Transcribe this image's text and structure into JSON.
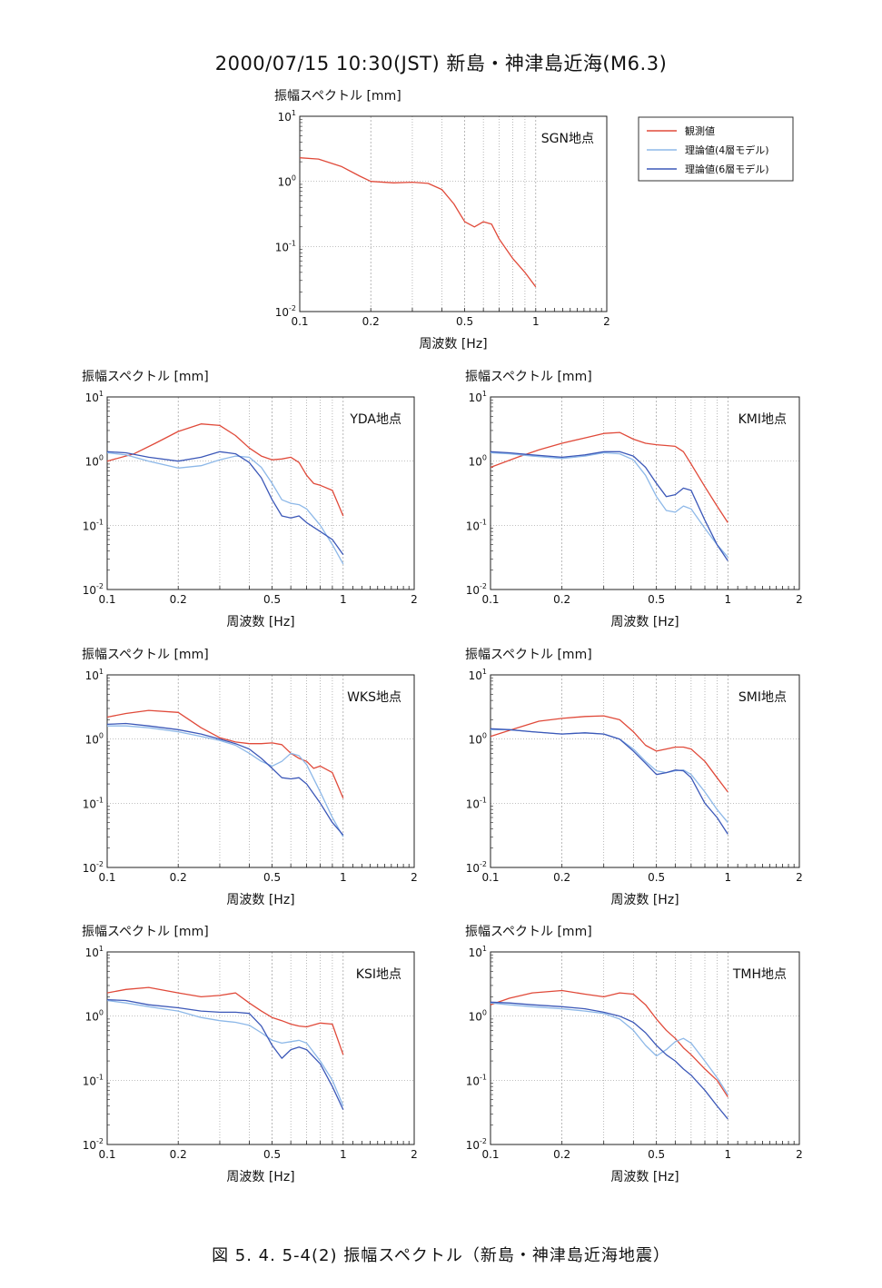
{
  "figure": {
    "title": "2000/07/15  10:30(JST)  新島・神津島近海(M6.3)",
    "caption": "図 5. 4. 5-4(2)        振幅スペクトル（新島・神津島近海地震）",
    "colors": {
      "observed": "#e04a3a",
      "model4": "#8db8e8",
      "model6": "#3c58b8"
    }
  },
  "legend": {
    "entries": [
      {
        "label": "観測値",
        "color": "#e04a3a"
      },
      {
        "label": "理論値(4層モデル)",
        "color": "#8db8e8"
      },
      {
        "label": "理論値(6層モデル)",
        "color": "#3c58b8"
      }
    ]
  },
  "chart_data": [
    {
      "type": "line",
      "station": "SGN地点",
      "ylabel": "振幅スペクトル [mm]",
      "xlabel": "周波数 [Hz]",
      "xscale": "log",
      "yscale": "log",
      "xlim": [
        0.1,
        2
      ],
      "ylim": [
        0.01,
        10
      ],
      "xticks": [
        "0.1",
        "0.2",
        "0.5",
        "1",
        "2"
      ],
      "yticks": [
        "10^-2",
        "10^-1",
        "10^0",
        "10^1"
      ],
      "series": [
        {
          "name": "観測値",
          "x": [
            0.1,
            0.12,
            0.15,
            0.18,
            0.2,
            0.25,
            0.3,
            0.35,
            0.4,
            0.45,
            0.5,
            0.55,
            0.6,
            0.65,
            0.7,
            0.8,
            0.9,
            1.0
          ],
          "y": [
            2.3,
            2.2,
            1.7,
            1.2,
            1.0,
            0.95,
            0.97,
            0.93,
            0.75,
            0.45,
            0.24,
            0.2,
            0.24,
            0.22,
            0.13,
            0.065,
            0.04,
            0.024
          ]
        }
      ]
    },
    {
      "type": "line",
      "station": "YDA地点",
      "ylabel": "振幅スペクトル [mm]",
      "xlabel": "周波数 [Hz]",
      "xscale": "log",
      "yscale": "log",
      "xlim": [
        0.1,
        2
      ],
      "ylim": [
        0.01,
        10
      ],
      "xticks": [
        "0.1",
        "0.2",
        "0.5",
        "1",
        "2"
      ],
      "yticks": [
        "10^-2",
        "10^-1",
        "10^0",
        "10^1"
      ],
      "series": [
        {
          "name": "観測値",
          "x": [
            0.1,
            0.13,
            0.16,
            0.2,
            0.25,
            0.3,
            0.35,
            0.4,
            0.45,
            0.5,
            0.55,
            0.6,
            0.65,
            0.7,
            0.75,
            0.8,
            0.9,
            1.0
          ],
          "y": [
            1.0,
            1.3,
            1.9,
            2.9,
            3.8,
            3.6,
            2.5,
            1.6,
            1.2,
            1.05,
            1.08,
            1.15,
            0.95,
            0.6,
            0.45,
            0.42,
            0.35,
            0.14
          ]
        },
        {
          "name": "理論値(4層モデル)",
          "x": [
            0.1,
            0.12,
            0.15,
            0.2,
            0.25,
            0.3,
            0.35,
            0.4,
            0.45,
            0.5,
            0.55,
            0.6,
            0.65,
            0.7,
            0.8,
            0.9,
            1.0
          ],
          "y": [
            1.35,
            1.25,
            1.0,
            0.78,
            0.85,
            1.05,
            1.2,
            1.15,
            0.8,
            0.45,
            0.25,
            0.22,
            0.21,
            0.18,
            0.1,
            0.05,
            0.025
          ]
        },
        {
          "name": "理論値(6層モデル)",
          "x": [
            0.1,
            0.12,
            0.15,
            0.2,
            0.25,
            0.3,
            0.35,
            0.4,
            0.45,
            0.5,
            0.55,
            0.6,
            0.65,
            0.7,
            0.8,
            0.9,
            1.0
          ],
          "y": [
            1.4,
            1.35,
            1.15,
            1.0,
            1.15,
            1.4,
            1.3,
            0.95,
            0.55,
            0.25,
            0.14,
            0.13,
            0.14,
            0.11,
            0.08,
            0.06,
            0.035
          ]
        }
      ]
    },
    {
      "type": "line",
      "station": "KMI地点",
      "ylabel": "振幅スペクトル [mm]",
      "xlabel": "周波数 [Hz]",
      "xscale": "log",
      "yscale": "log",
      "xlim": [
        0.1,
        2
      ],
      "ylim": [
        0.01,
        10
      ],
      "xticks": [
        "0.1",
        "0.2",
        "0.5",
        "1",
        "2"
      ],
      "yticks": [
        "10^-2",
        "10^-1",
        "10^0",
        "10^1"
      ],
      "series": [
        {
          "name": "観測値",
          "x": [
            0.1,
            0.13,
            0.16,
            0.2,
            0.25,
            0.3,
            0.35,
            0.4,
            0.45,
            0.5,
            0.55,
            0.6,
            0.65,
            0.7,
            0.8,
            0.9,
            1.0
          ],
          "y": [
            0.8,
            1.15,
            1.5,
            1.9,
            2.3,
            2.7,
            2.8,
            2.2,
            1.9,
            1.8,
            1.75,
            1.7,
            1.4,
            0.9,
            0.4,
            0.2,
            0.11
          ]
        },
        {
          "name": "理論値(4層モデル)",
          "x": [
            0.1,
            0.12,
            0.15,
            0.2,
            0.25,
            0.3,
            0.35,
            0.4,
            0.45,
            0.5,
            0.55,
            0.6,
            0.65,
            0.7,
            0.8,
            0.9,
            1.0
          ],
          "y": [
            1.35,
            1.3,
            1.2,
            1.1,
            1.2,
            1.35,
            1.3,
            1.05,
            0.6,
            0.28,
            0.17,
            0.16,
            0.2,
            0.18,
            0.09,
            0.05,
            0.032
          ]
        },
        {
          "name": "理論値(6層モデル)",
          "x": [
            0.1,
            0.12,
            0.15,
            0.2,
            0.25,
            0.3,
            0.35,
            0.4,
            0.45,
            0.5,
            0.55,
            0.6,
            0.65,
            0.7,
            0.8,
            0.9,
            1.0
          ],
          "y": [
            1.4,
            1.35,
            1.25,
            1.15,
            1.25,
            1.4,
            1.4,
            1.2,
            0.8,
            0.45,
            0.28,
            0.3,
            0.38,
            0.35,
            0.12,
            0.05,
            0.028
          ]
        }
      ]
    },
    {
      "type": "line",
      "station": "WKS地点",
      "ylabel": "振幅スペクトル [mm]",
      "xlabel": "周波数 [Hz]",
      "xscale": "log",
      "yscale": "log",
      "xlim": [
        0.1,
        2
      ],
      "ylim": [
        0.01,
        10
      ],
      "xticks": [
        "0.1",
        "0.2",
        "0.5",
        "1",
        "2"
      ],
      "yticks": [
        "10^-2",
        "10^-1",
        "10^0",
        "10^1"
      ],
      "series": [
        {
          "name": "観測値",
          "x": [
            0.1,
            0.12,
            0.15,
            0.2,
            0.25,
            0.3,
            0.35,
            0.4,
            0.45,
            0.5,
            0.55,
            0.6,
            0.65,
            0.7,
            0.75,
            0.8,
            0.9,
            1.0
          ],
          "y": [
            2.2,
            2.5,
            2.8,
            2.6,
            1.5,
            1.05,
            0.9,
            0.85,
            0.85,
            0.87,
            0.82,
            0.6,
            0.5,
            0.45,
            0.35,
            0.38,
            0.3,
            0.12
          ]
        },
        {
          "name": "理論値(4層モデル)",
          "x": [
            0.1,
            0.12,
            0.15,
            0.2,
            0.25,
            0.3,
            0.35,
            0.4,
            0.45,
            0.5,
            0.55,
            0.6,
            0.65,
            0.7,
            0.8,
            0.9,
            1.0
          ],
          "y": [
            1.6,
            1.6,
            1.5,
            1.3,
            1.1,
            0.95,
            0.8,
            0.6,
            0.45,
            0.38,
            0.45,
            0.6,
            0.55,
            0.4,
            0.15,
            0.06,
            0.03
          ]
        },
        {
          "name": "理論値(6層モデル)",
          "x": [
            0.1,
            0.12,
            0.15,
            0.2,
            0.25,
            0.3,
            0.35,
            0.4,
            0.45,
            0.5,
            0.55,
            0.6,
            0.65,
            0.7,
            0.8,
            0.9,
            1.0
          ],
          "y": [
            1.7,
            1.75,
            1.6,
            1.4,
            1.2,
            1.0,
            0.85,
            0.7,
            0.5,
            0.35,
            0.25,
            0.24,
            0.25,
            0.2,
            0.1,
            0.05,
            0.032
          ]
        }
      ]
    },
    {
      "type": "line",
      "station": "SMI地点",
      "ylabel": "振幅スペクトル [mm]",
      "xlabel": "周波数 [Hz]",
      "xscale": "log",
      "yscale": "log",
      "xlim": [
        0.1,
        2
      ],
      "ylim": [
        0.01,
        10
      ],
      "xticks": [
        "0.1",
        "0.2",
        "0.5",
        "1",
        "2"
      ],
      "yticks": [
        "10^-2",
        "10^-1",
        "10^0",
        "10^1"
      ],
      "series": [
        {
          "name": "観測値",
          "x": [
            0.1,
            0.13,
            0.16,
            0.2,
            0.25,
            0.3,
            0.35,
            0.4,
            0.45,
            0.5,
            0.55,
            0.6,
            0.65,
            0.7,
            0.8,
            0.9,
            1.0
          ],
          "y": [
            1.1,
            1.5,
            1.9,
            2.1,
            2.25,
            2.3,
            2.0,
            1.3,
            0.8,
            0.65,
            0.7,
            0.75,
            0.75,
            0.7,
            0.45,
            0.25,
            0.15
          ]
        },
        {
          "name": "理論値(4層モデル)",
          "x": [
            0.1,
            0.12,
            0.15,
            0.2,
            0.25,
            0.3,
            0.35,
            0.4,
            0.45,
            0.5,
            0.55,
            0.6,
            0.65,
            0.7,
            0.8,
            0.9,
            1.0
          ],
          "y": [
            1.4,
            1.4,
            1.3,
            1.2,
            1.25,
            1.2,
            1.0,
            0.7,
            0.45,
            0.32,
            0.3,
            0.32,
            0.33,
            0.28,
            0.15,
            0.08,
            0.05
          ]
        },
        {
          "name": "理論値(6層モデル)",
          "x": [
            0.1,
            0.12,
            0.15,
            0.2,
            0.25,
            0.3,
            0.35,
            0.4,
            0.45,
            0.5,
            0.55,
            0.6,
            0.65,
            0.7,
            0.8,
            0.9,
            1.0
          ],
          "y": [
            1.45,
            1.4,
            1.3,
            1.2,
            1.25,
            1.2,
            1.0,
            0.65,
            0.42,
            0.28,
            0.3,
            0.33,
            0.32,
            0.25,
            0.1,
            0.06,
            0.033
          ]
        }
      ]
    },
    {
      "type": "line",
      "station": "KSI地点",
      "ylabel": "振幅スペクトル [mm]",
      "xlabel": "周波数 [Hz]",
      "xscale": "log",
      "yscale": "log",
      "xlim": [
        0.1,
        2
      ],
      "ylim": [
        0.01,
        10
      ],
      "xticks": [
        "0.1",
        "0.2",
        "0.5",
        "1",
        "2"
      ],
      "yticks": [
        "10^-2",
        "10^-1",
        "10^0",
        "10^1"
      ],
      "series": [
        {
          "name": "観測値",
          "x": [
            0.1,
            0.12,
            0.15,
            0.2,
            0.25,
            0.3,
            0.35,
            0.4,
            0.45,
            0.5,
            0.55,
            0.6,
            0.65,
            0.7,
            0.8,
            0.9,
            1.0
          ],
          "y": [
            2.3,
            2.6,
            2.8,
            2.3,
            2.0,
            2.1,
            2.3,
            1.6,
            1.2,
            0.95,
            0.85,
            0.75,
            0.7,
            0.68,
            0.78,
            0.75,
            0.25
          ]
        },
        {
          "name": "理論値(4層モデル)",
          "x": [
            0.1,
            0.12,
            0.15,
            0.2,
            0.25,
            0.3,
            0.35,
            0.4,
            0.45,
            0.5,
            0.55,
            0.6,
            0.65,
            0.7,
            0.8,
            0.9,
            1.0
          ],
          "y": [
            1.75,
            1.6,
            1.4,
            1.2,
            0.95,
            0.85,
            0.8,
            0.72,
            0.55,
            0.42,
            0.38,
            0.4,
            0.42,
            0.38,
            0.2,
            0.1,
            0.04
          ]
        },
        {
          "name": "理論値(6層モデル)",
          "x": [
            0.1,
            0.12,
            0.15,
            0.2,
            0.25,
            0.3,
            0.35,
            0.4,
            0.45,
            0.5,
            0.55,
            0.6,
            0.65,
            0.7,
            0.8,
            0.9,
            1.0
          ],
          "y": [
            1.8,
            1.75,
            1.5,
            1.35,
            1.2,
            1.15,
            1.15,
            1.1,
            0.7,
            0.35,
            0.22,
            0.3,
            0.33,
            0.3,
            0.18,
            0.08,
            0.035
          ]
        }
      ]
    },
    {
      "type": "line",
      "station": "TMH地点",
      "ylabel": "振幅スペクトル [mm]",
      "xlabel": "周波数 [Hz]",
      "xscale": "log",
      "yscale": "log",
      "xlim": [
        0.1,
        2
      ],
      "ylim": [
        0.01,
        10
      ],
      "xticks": [
        "0.1",
        "0.2",
        "0.5",
        "1",
        "2"
      ],
      "yticks": [
        "10^-2",
        "10^-1",
        "10^0",
        "10^1"
      ],
      "series": [
        {
          "name": "観測値",
          "x": [
            0.1,
            0.12,
            0.15,
            0.2,
            0.25,
            0.3,
            0.35,
            0.4,
            0.45,
            0.5,
            0.55,
            0.6,
            0.65,
            0.7,
            0.8,
            0.9,
            1.0
          ],
          "y": [
            1.5,
            1.9,
            2.3,
            2.5,
            2.2,
            2.0,
            2.3,
            2.2,
            1.5,
            0.9,
            0.6,
            0.45,
            0.32,
            0.25,
            0.15,
            0.1,
            0.055
          ]
        },
        {
          "name": "理論値(4層モデル)",
          "x": [
            0.1,
            0.12,
            0.15,
            0.2,
            0.25,
            0.3,
            0.35,
            0.4,
            0.45,
            0.5,
            0.55,
            0.6,
            0.65,
            0.7,
            0.8,
            0.9,
            1.0
          ],
          "y": [
            1.6,
            1.5,
            1.4,
            1.3,
            1.2,
            1.1,
            0.9,
            0.6,
            0.35,
            0.24,
            0.3,
            0.4,
            0.45,
            0.38,
            0.2,
            0.11,
            0.06
          ]
        },
        {
          "name": "理論値(6層モデル)",
          "x": [
            0.1,
            0.12,
            0.15,
            0.2,
            0.25,
            0.3,
            0.35,
            0.4,
            0.45,
            0.5,
            0.55,
            0.6,
            0.65,
            0.7,
            0.8,
            0.9,
            1.0
          ],
          "y": [
            1.65,
            1.6,
            1.5,
            1.4,
            1.3,
            1.15,
            1.0,
            0.8,
            0.55,
            0.35,
            0.25,
            0.2,
            0.15,
            0.12,
            0.07,
            0.04,
            0.025
          ]
        }
      ]
    }
  ]
}
